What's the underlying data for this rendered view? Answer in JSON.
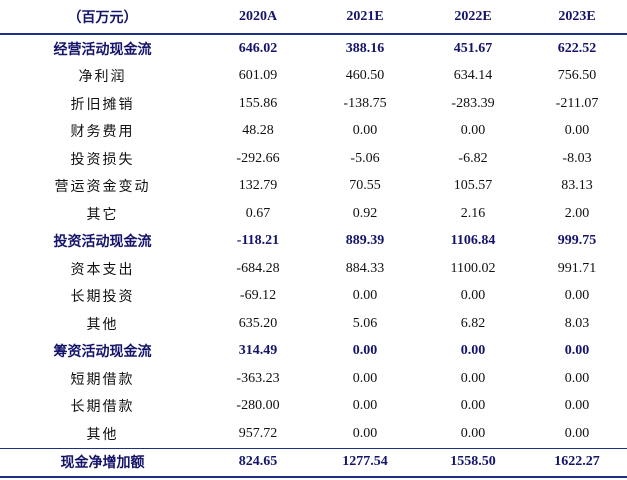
{
  "table": {
    "header": [
      "（百万元）",
      "2020A",
      "2021E",
      "2022E",
      "2023E"
    ],
    "rows": [
      {
        "bold": true,
        "cells": [
          "经营活动现金流",
          "646.02",
          "388.16",
          "451.67",
          "622.52"
        ]
      },
      {
        "bold": false,
        "cells": [
          "净利润",
          "601.09",
          "460.50",
          "634.14",
          "756.50"
        ]
      },
      {
        "bold": false,
        "cells": [
          "折旧摊销",
          "155.86",
          "-138.75",
          "-283.39",
          "-211.07"
        ]
      },
      {
        "bold": false,
        "cells": [
          "财务费用",
          "48.28",
          "0.00",
          "0.00",
          "0.00"
        ]
      },
      {
        "bold": false,
        "cells": [
          "投资损失",
          "-292.66",
          "-5.06",
          "-6.82",
          "-8.03"
        ]
      },
      {
        "bold": false,
        "cells": [
          "营运资金变动",
          "132.79",
          "70.55",
          "105.57",
          "83.13"
        ]
      },
      {
        "bold": false,
        "cells": [
          "其它",
          "0.67",
          "0.92",
          "2.16",
          "2.00"
        ]
      },
      {
        "bold": true,
        "cells": [
          "投资活动现金流",
          "-118.21",
          "889.39",
          "1106.84",
          "999.75"
        ]
      },
      {
        "bold": false,
        "cells": [
          "资本支出",
          "-684.28",
          "884.33",
          "1100.02",
          "991.71"
        ]
      },
      {
        "bold": false,
        "cells": [
          "长期投资",
          "-69.12",
          "0.00",
          "0.00",
          "0.00"
        ]
      },
      {
        "bold": false,
        "cells": [
          "其他",
          "635.20",
          "5.06",
          "6.82",
          "8.03"
        ]
      },
      {
        "bold": true,
        "cells": [
          "筹资活动现金流",
          "314.49",
          "0.00",
          "0.00",
          "0.00"
        ]
      },
      {
        "bold": false,
        "cells": [
          "短期借款",
          "-363.23",
          "0.00",
          "0.00",
          "0.00"
        ]
      },
      {
        "bold": false,
        "cells": [
          "长期借款",
          "-280.00",
          "0.00",
          "0.00",
          "0.00"
        ]
      },
      {
        "bold": false,
        "cells": [
          "其他",
          "957.72",
          "0.00",
          "0.00",
          "0.00"
        ]
      },
      {
        "bold": true,
        "cells": [
          "现金净增加额",
          "824.65",
          "1277.54",
          "1558.50",
          "1622.27"
        ]
      }
    ]
  }
}
